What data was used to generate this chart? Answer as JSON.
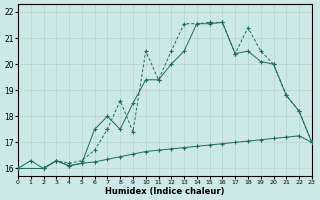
{
  "xlabel": "Humidex (Indice chaleur)",
  "bg_color": "#cce8e8",
  "grid_color": "#b8d0d0",
  "line_color": "#1a6b5a",
  "xlim": [
    0,
    23
  ],
  "ylim": [
    15.7,
    22.3
  ],
  "xticks": [
    0,
    1,
    2,
    3,
    4,
    5,
    6,
    7,
    8,
    9,
    10,
    11,
    12,
    13,
    14,
    15,
    16,
    17,
    18,
    19,
    20,
    21,
    22,
    23
  ],
  "yticks": [
    16,
    17,
    18,
    19,
    20,
    21,
    22
  ],
  "line1_x": [
    0,
    1,
    2,
    3,
    4,
    5,
    6,
    7,
    8,
    9,
    10,
    11,
    12,
    13,
    14,
    15,
    16,
    17,
    18,
    19,
    20,
    21,
    22,
    23
  ],
  "line1_y": [
    16.0,
    16.3,
    16.0,
    16.3,
    16.1,
    16.2,
    16.25,
    16.35,
    16.45,
    16.55,
    16.65,
    16.7,
    16.75,
    16.8,
    16.85,
    16.9,
    16.95,
    17.0,
    17.05,
    17.1,
    17.15,
    17.2,
    17.25,
    17.0
  ],
  "line2_x": [
    0,
    2,
    3,
    4,
    5,
    6,
    7,
    8,
    9,
    10,
    11,
    12,
    13,
    14,
    15,
    16,
    17,
    18,
    19,
    20,
    21,
    22,
    23
  ],
  "line2_y": [
    16.0,
    16.0,
    16.3,
    16.1,
    16.2,
    17.5,
    18.0,
    17.5,
    18.5,
    19.4,
    19.4,
    20.0,
    20.5,
    21.55,
    21.55,
    21.6,
    20.4,
    20.5,
    20.1,
    20.0,
    18.8,
    18.2,
    17.0
  ],
  "line3_x": [
    0,
    2,
    3,
    4,
    5,
    6,
    7,
    8,
    9,
    10,
    11,
    12,
    13,
    14,
    15,
    16,
    17,
    18,
    19,
    20,
    21,
    22,
    23
  ],
  "line3_y": [
    16.0,
    16.0,
    16.3,
    16.2,
    16.3,
    16.7,
    17.5,
    18.6,
    17.4,
    20.5,
    19.4,
    20.5,
    21.55,
    21.55,
    21.6,
    21.6,
    20.4,
    21.4,
    20.5,
    20.0,
    18.8,
    18.2,
    17.0
  ],
  "xtick_fontsize": 4.5,
  "ytick_fontsize": 5.5,
  "xlabel_fontsize": 6.0
}
